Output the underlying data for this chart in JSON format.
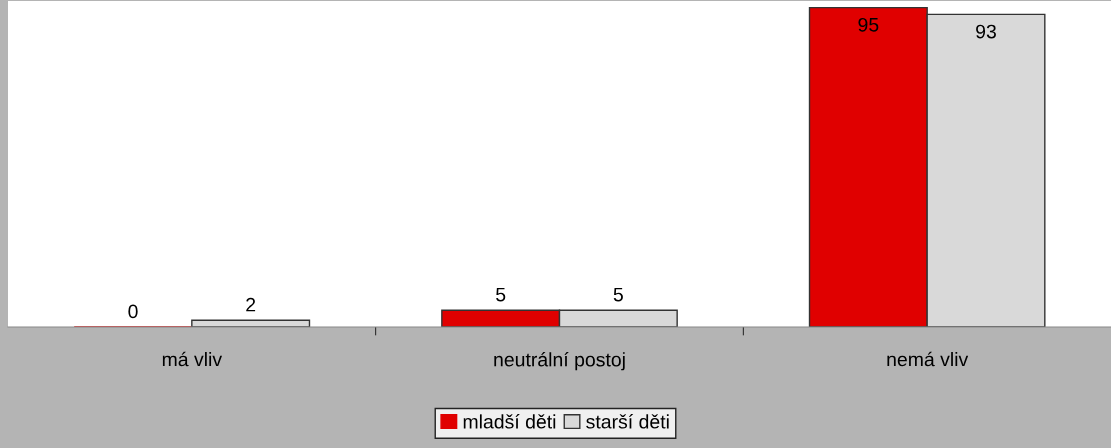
{
  "chart_data": {
    "type": "bar",
    "categories": [
      "má vliv",
      "neutrální postoj",
      "nemá vliv"
    ],
    "series": [
      {
        "name": "mladší děti",
        "color": "#e00000",
        "values": [
          0,
          5,
          95
        ]
      },
      {
        "name": "starší děti",
        "color": "#d9d9d9",
        "values": [
          2,
          5,
          93
        ]
      }
    ],
    "ylim": [
      0,
      97
    ],
    "data_labels": true,
    "legend": "bottom",
    "grid": false
  }
}
